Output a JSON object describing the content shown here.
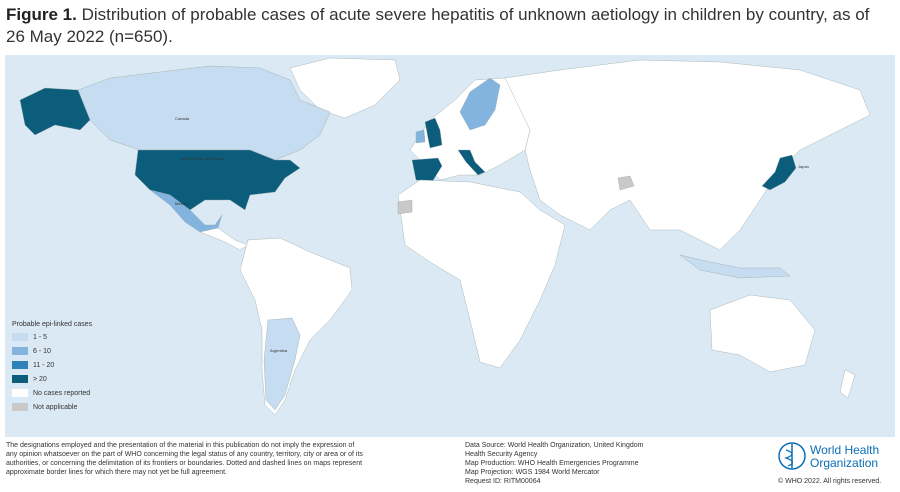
{
  "title_label": "Figure 1.",
  "title_text": "Distribution of probable cases of acute severe hepatitis of unknown aetiology in children by country, as of 26 May 2022 (n=650).",
  "legend": {
    "title": "Probable epi-linked cases",
    "items": [
      {
        "label": "1 - 5",
        "color": "#c6dcf0"
      },
      {
        "label": "6 - 10",
        "color": "#82b4df"
      },
      {
        "label": "11 - 20",
        "color": "#2f82b5"
      },
      {
        "label": "> 20",
        "color": "#0c5d7c"
      },
      {
        "label": "No cases reported",
        "color": "#ffffff"
      },
      {
        "label": "Not applicable",
        "color": "#c9c9c9"
      }
    ]
  },
  "country_labels": [
    "Canada",
    "United States of America",
    "Mexico",
    "Argentina",
    "Japan"
  ],
  "disclaimer": [
    "The designations employed and the presentation of the material in this publication do not imply the expression of",
    "any opinion whatsoever on the part of WHO concerning the legal status of any country, territory, city or area or of its",
    "authorities, or concerning the delimitation of its frontiers or boundaries. Dotted and dashed lines on maps represent",
    "approximate border lines for which there may not yet be full agreement."
  ],
  "source": [
    "Data Source: World Health Organization, United Kingdom",
    "Health Security Agency",
    "Map Production: WHO Health Emergencies Programme",
    "Map Projection: WGS 1984 World Mercator",
    "Request ID: RITM00064"
  ],
  "logo": [
    "World Health",
    "Organization"
  ],
  "copyright": "© WHO 2022. All rights reserved."
}
